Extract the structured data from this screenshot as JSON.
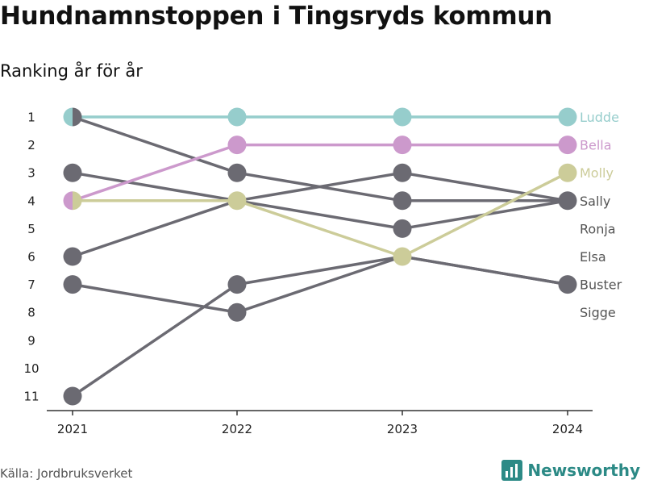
{
  "title": "Hundnamnstoppen i Tingsryds kommun",
  "subtitle": "Ranking år för år",
  "source": "Källa: Jordbruksverket",
  "brand": "Newsworthy",
  "chart_data": {
    "type": "line",
    "x": [
      "2021",
      "2022",
      "2023",
      "2024"
    ],
    "y_ticks": [
      1,
      2,
      3,
      4,
      5,
      6,
      7,
      8,
      9,
      10,
      11
    ],
    "y_reversed": true,
    "series": [
      {
        "name": "Ludde",
        "values": [
          1,
          1,
          1,
          1
        ],
        "color": "#96cdcc",
        "highlight": true
      },
      {
        "name": "Bella",
        "values": [
          4,
          2,
          2,
          2
        ],
        "color": "#cc99cc",
        "highlight": true
      },
      {
        "name": "Molly",
        "values": [
          4,
          4,
          6,
          3
        ],
        "color": "#cccc99",
        "highlight": true
      },
      {
        "name": "Sally",
        "values": [
          1,
          3,
          4,
          4
        ],
        "color": "#6b6a72",
        "highlight": false
      },
      {
        "name": "Ronja",
        "values": [
          3,
          4,
          5,
          4
        ],
        "color": "#6b6a72",
        "highlight": false
      },
      {
        "name": "Elsa",
        "values": [
          6,
          4,
          3,
          4
        ],
        "color": "#6b6a72",
        "highlight": false
      },
      {
        "name": "Buster",
        "values": [
          7,
          8,
          6,
          7
        ],
        "color": "#6b6a72",
        "highlight": false
      },
      {
        "name": "Sigge",
        "values": [
          11,
          7,
          6,
          7
        ],
        "color": "#6b6a72",
        "highlight": false
      }
    ],
    "end_labels": [
      {
        "text": "Ludde",
        "rank": 1,
        "color": "#96cdcc"
      },
      {
        "text": "Bella",
        "rank": 2,
        "color": "#cc99cc"
      },
      {
        "text": "Molly",
        "rank": 3,
        "color": "#cccc99"
      },
      {
        "text": "Sally",
        "rank": 4,
        "color": "#555555"
      },
      {
        "text": "Ronja",
        "rank": 5,
        "color": "#555555"
      },
      {
        "text": "Elsa",
        "rank": 6,
        "color": "#555555"
      },
      {
        "text": "Buster",
        "rank": 7,
        "color": "#555555"
      },
      {
        "text": "Sigge",
        "rank": 8,
        "color": "#555555"
      }
    ]
  }
}
